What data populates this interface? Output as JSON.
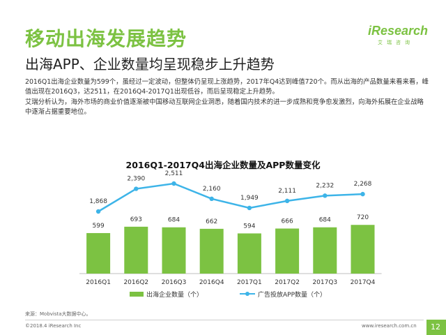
{
  "header": {
    "title": "移动出海发展趋势",
    "subtitle": "出海APP、企业数量均呈现稳步上升趋势"
  },
  "logo": {
    "text": "iResearch",
    "sub": "艾瑞咨询"
  },
  "body": {
    "para1": "2016Q1出海企业数量为599个，虽经过一定波动，但整体仍呈现上涨趋势，2017年Q4达到峰值720个。而从出海的产品数量来看来看，峰值出现在2016Q3，达2511，在2016Q4-2017Q1出现低谷，而后呈现稳定上升趋势。",
    "para2": "艾瑞分析认为，海外市场的商业价值逐渐被中国移动互联网企业洞悉，随着国内技术的进一步成熟和竞争愈发激烈，向海外拓展在企业战略中逐渐占据重要地位。"
  },
  "chart_data": {
    "type": "bar",
    "title": "2016Q1-2017Q4出海企业数量及APP数量变化",
    "categories": [
      "2016Q1",
      "2016Q2",
      "2016Q3",
      "2016Q4",
      "2017Q1",
      "2017Q2",
      "2017Q3",
      "2017Q4"
    ],
    "series": [
      {
        "name": "出海企业数量（个）",
        "type": "bar",
        "color": "#7cc242",
        "values": [
          599,
          693,
          684,
          662,
          594,
          666,
          684,
          720
        ],
        "labels": [
          "599",
          "693",
          "684",
          "662",
          "594",
          "666",
          "684",
          "720"
        ]
      },
      {
        "name": "广告投放APP数量（个）",
        "type": "line",
        "color": "#3db4e8",
        "values": [
          1868,
          2390,
          2511,
          2160,
          1949,
          2111,
          2232,
          2268
        ],
        "labels": [
          "1,868",
          "2,390",
          "2,511",
          "2,160",
          "1,949",
          "2,111",
          "2,232",
          "2,268"
        ]
      }
    ],
    "legend_position": "bottom",
    "grid": false
  },
  "footer": {
    "source": "来源：Mobvista大数据中心。",
    "copyright": "©2018.4 iResearch Inc",
    "site": "www.iresearch.com.cn",
    "page": "12"
  }
}
